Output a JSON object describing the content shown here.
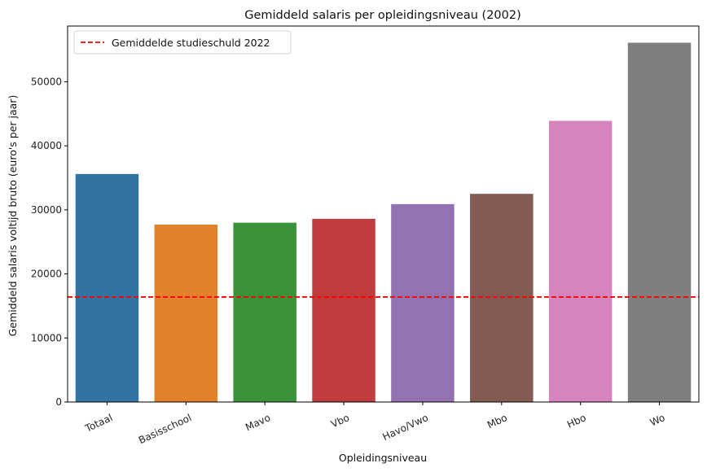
{
  "chart_data": {
    "type": "bar",
    "title": "Gemiddeld salaris per opleidingsniveau (2002)",
    "xlabel": "Opleidingsniveau",
    "ylabel": "Gemiddeld salaris voltijd bruto (euro's per jaar)",
    "categories": [
      "Totaal",
      "Basisschool",
      "Mavo",
      "Vbo",
      "Havo/Vwo",
      "Mbo",
      "Hbo",
      "Wo"
    ],
    "values": [
      35600,
      27700,
      28000,
      28600,
      30900,
      32500,
      43900,
      56100
    ],
    "colors": [
      "#3274a1",
      "#e1812c",
      "#3a923a",
      "#c03d3e",
      "#9372b2",
      "#845b53",
      "#d684bd",
      "#7f7f7f"
    ],
    "ylim": [
      0,
      58700
    ],
    "yticks": [
      0,
      10000,
      20000,
      30000,
      40000,
      50000
    ],
    "ytick_labels": [
      "0",
      "10000",
      "20000",
      "30000",
      "40000",
      "50000"
    ],
    "reference_line": {
      "label": "Gemiddelde studieschuld 2022",
      "value": 16400,
      "color": "#ff0000",
      "style": "dashed"
    },
    "legend_position": "top-left",
    "grid": false
  }
}
